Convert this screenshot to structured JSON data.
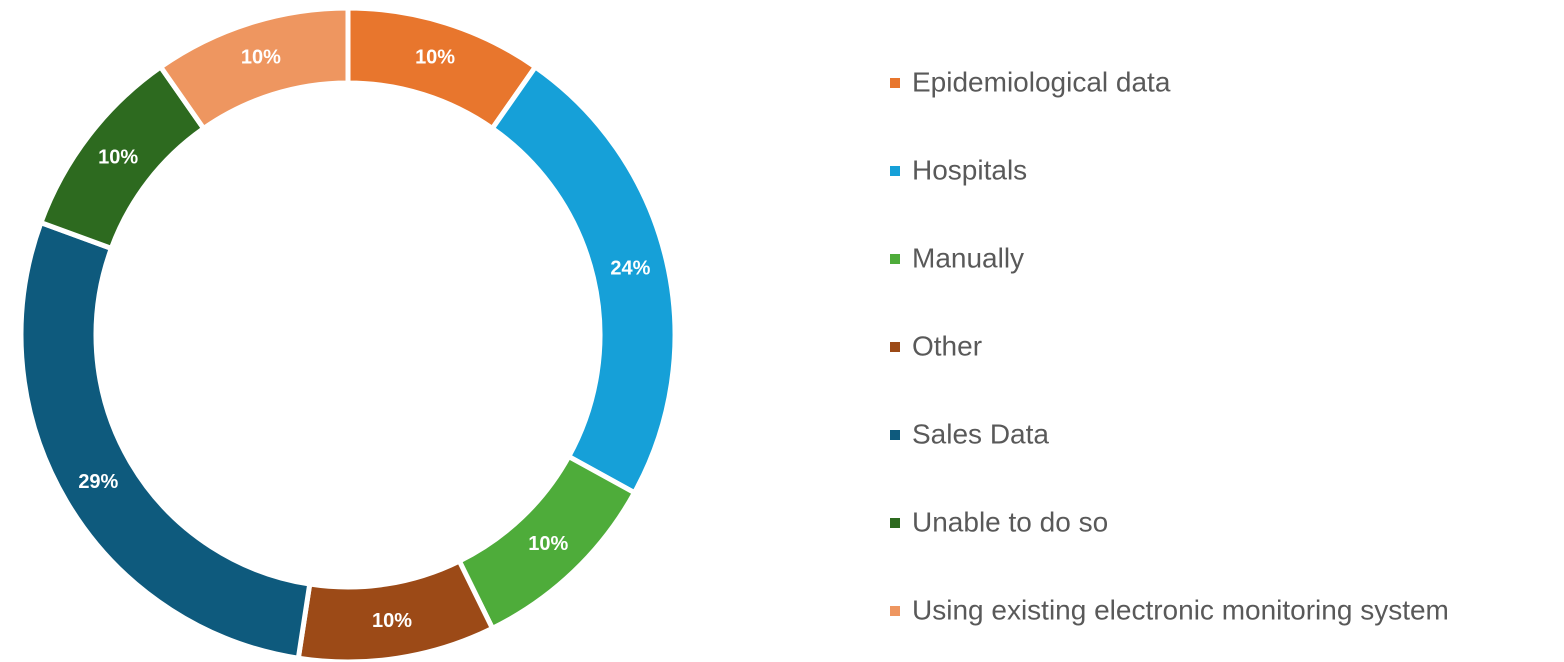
{
  "chart_data": {
    "type": "donut",
    "categories": [
      "Epidemiological data",
      "Hospitals",
      "Manually",
      "Other",
      "Sales Data",
      "Unable to do so",
      "Using existing electronic monitoring system"
    ],
    "values": [
      10,
      24,
      10,
      10,
      29,
      10,
      10
    ],
    "value_labels": [
      "10%",
      "24%",
      "10%",
      "10%",
      "29%",
      "10%",
      "10%"
    ],
    "colors": [
      "#e8762d",
      "#16a0d8",
      "#4eac3a",
      "#9c4a17",
      "#0e5a7d",
      "#2d6a1f",
      "#ee9660"
    ],
    "legend": "right"
  }
}
